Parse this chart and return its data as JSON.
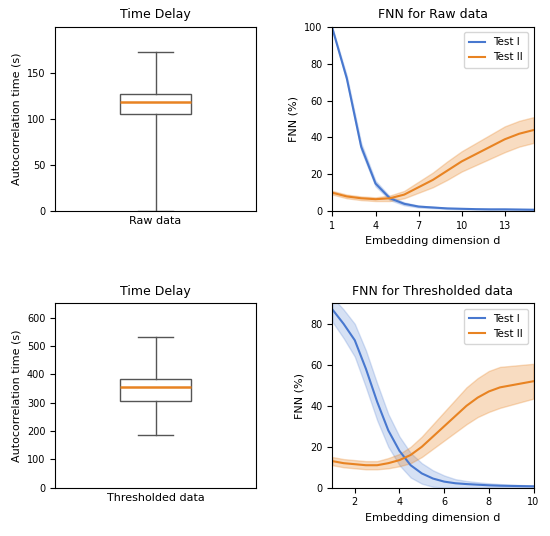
{
  "box_raw": {
    "whisker_low": 0,
    "q1": 105,
    "median": 118,
    "q3": 127,
    "whisker_high": 173,
    "xlabel": "Raw data",
    "ylabel": "Autocorrelation time (s)",
    "title": "Time Delay",
    "ylim": [
      0,
      200
    ],
    "yticks": [
      0,
      50,
      100,
      150
    ]
  },
  "box_thresh": {
    "whisker_low": 185,
    "q1": 305,
    "median": 355,
    "q3": 383,
    "whisker_high": 530,
    "xlabel": "Thresholded data",
    "ylabel": "Autocorrelation time (s)",
    "title": "Time Delay",
    "ylim": [
      0,
      650
    ],
    "yticks": [
      0,
      100,
      200,
      300,
      400,
      500,
      600
    ]
  },
  "fnn_raw": {
    "title": "FNN for Raw data",
    "xlabel": "Embedding dimension d",
    "ylabel": "FNN (%)",
    "xlim": [
      1,
      15
    ],
    "ylim": [
      0,
      100
    ],
    "yticks": [
      0,
      20,
      40,
      60,
      80,
      100
    ],
    "xticks": [
      1,
      4,
      7,
      10,
      13
    ],
    "test1_x": [
      1,
      2,
      3,
      4,
      5,
      6,
      7,
      8,
      9,
      10,
      11,
      12,
      13,
      14,
      15
    ],
    "test1_mean": [
      99,
      72,
      35,
      15,
      7,
      4,
      2.5,
      2.0,
      1.5,
      1.3,
      1.1,
      1.0,
      1.0,
      0.9,
      0.8
    ],
    "test1_std": [
      0.5,
      1.5,
      2,
      1.5,
      1,
      0.8,
      0.5,
      0.4,
      0.3,
      0.3,
      0.2,
      0.2,
      0.2,
      0.2,
      0.2
    ],
    "test2_x": [
      1,
      2,
      3,
      4,
      5,
      6,
      7,
      8,
      9,
      10,
      11,
      12,
      13,
      14,
      15
    ],
    "test2_mean": [
      10,
      8,
      7,
      6.5,
      7,
      9,
      13,
      17,
      22,
      27,
      31,
      35,
      39,
      42,
      44
    ],
    "test2_std": [
      1,
      1,
      1,
      1,
      1.5,
      2,
      3,
      4,
      5,
      5.5,
      6,
      6.5,
      7,
      7,
      7
    ]
  },
  "fnn_thresh": {
    "title": "FNN for Thresholded data",
    "xlabel": "Embedding dimension d",
    "ylabel": "FNN (%)",
    "xlim": [
      1,
      10
    ],
    "ylim": [
      0,
      90
    ],
    "yticks": [
      0,
      20,
      40,
      60,
      80
    ],
    "xticks": [
      2,
      4,
      6,
      8,
      10
    ],
    "test1_x": [
      1,
      1.5,
      2,
      2.5,
      3,
      3.5,
      4,
      4.5,
      5,
      5.5,
      6,
      6.5,
      7,
      7.5,
      8,
      8.5,
      9,
      9.5,
      10
    ],
    "test1_mean": [
      87,
      80,
      72,
      58,
      42,
      28,
      18,
      11,
      7,
      4.5,
      3,
      2.2,
      1.8,
      1.5,
      1.2,
      1.0,
      0.9,
      0.8,
      0.7
    ],
    "test1_std": [
      6,
      7,
      8,
      9,
      9,
      8,
      7,
      6,
      5,
      4,
      3,
      2,
      1.5,
      1.2,
      1,
      0.8,
      0.6,
      0.5,
      0.4
    ],
    "test2_x": [
      1,
      1.5,
      2,
      2.5,
      3,
      3.5,
      4,
      4.5,
      5,
      5.5,
      6,
      6.5,
      7,
      7.5,
      8,
      8.5,
      9,
      9.5,
      10
    ],
    "test2_mean": [
      13,
      12,
      11.5,
      11,
      11,
      12,
      13.5,
      16,
      20,
      25,
      30,
      35,
      40,
      44,
      47,
      49,
      50,
      51,
      52
    ],
    "test2_std": [
      2,
      2,
      2,
      2,
      2,
      2.5,
      3,
      4,
      5,
      6,
      7,
      8,
      9,
      9.5,
      10,
      10,
      9.5,
      9,
      8.5
    ]
  },
  "color_test1": "#4878cf",
  "color_test2": "#e88322",
  "median_color": "#e88322",
  "box_edge_color": "#555555",
  "whisker_color": "#555555"
}
